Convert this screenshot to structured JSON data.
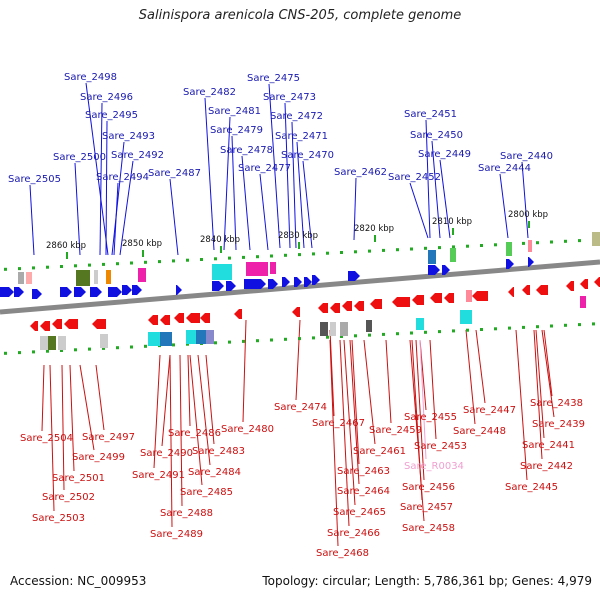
{
  "title": "Salinispora arenicola CNS-205, complete genome",
  "footer": {
    "accession": "Accession: NC_009953",
    "summary": "Topology: circular; Length: 5,786,361 bp; Genes: 4,979"
  },
  "colors": {
    "forward": "#1010e0",
    "reverse": "#ee1010",
    "forward_label": "#1a1ab0",
    "reverse_label": "#cc1010",
    "rna_label": "#f0a0d0",
    "backbone": "#888888",
    "tick": "#22aa22"
  },
  "ticks": [
    "2860 kbp",
    "2850 kbp",
    "2840 kbp",
    "2830 kbp",
    "2820 kbp",
    "2810 kbp",
    "2800 kbp"
  ],
  "forward_labels": [
    "Sare_2498",
    "Sare_2496",
    "Sare_2495",
    "Sare_2493",
    "Sare_2500",
    "Sare_2492",
    "Sare_2494",
    "Sare_2505",
    "Sare_2487",
    "Sare_2482",
    "Sare_2481",
    "Sare_2479",
    "Sare_2478",
    "Sare_2477",
    "Sare_2475",
    "Sare_2473",
    "Sare_2472",
    "Sare_2471",
    "Sare_2470",
    "Sare_2462",
    "Sare_2451",
    "Sare_2450",
    "Sare_2449",
    "Sare_2452",
    "Sare_2440",
    "Sare_2444"
  ],
  "reverse_labels": [
    "Sare_2504",
    "Sare_2497",
    "Sare_2499",
    "Sare_2501",
    "Sare_2502",
    "Sare_2503",
    "Sare_2486",
    "Sare_2490",
    "Sare_2483",
    "Sare_2491",
    "Sare_2484",
    "Sare_2485",
    "Sare_2488",
    "Sare_2489",
    "Sare_2480",
    "Sare_2474",
    "Sare_2467",
    "Sare_2461",
    "Sare_2463",
    "Sare_2464",
    "Sare_2465",
    "Sare_2466",
    "Sare_2468",
    "Sare_2459",
    "Sare_2455",
    "Sare_2453",
    "Sare_R0034",
    "Sare_2456",
    "Sare_2457",
    "Sare_2458",
    "Sare_2447",
    "Sare_2448",
    "Sare_2438",
    "Sare_2439",
    "Sare_2441",
    "Sare_2442",
    "Sare_2445"
  ]
}
